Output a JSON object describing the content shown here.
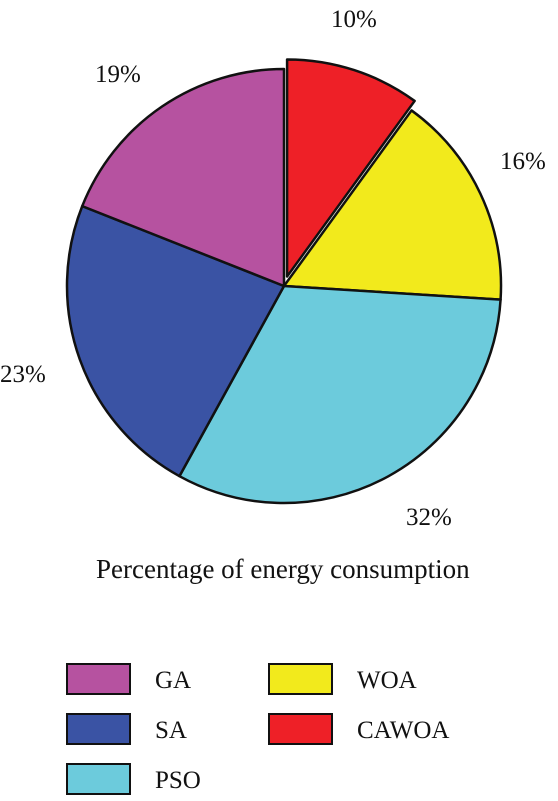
{
  "chart_data": {
    "type": "pie",
    "caption": "Percentage of energy consumption",
    "slices": [
      {
        "name": "CAWOA",
        "value": 10,
        "label": "10%",
        "color": "#ee2027",
        "exploded": true
      },
      {
        "name": "WOA",
        "value": 16,
        "label": "16%",
        "color": "#f2ea1c",
        "exploded": false
      },
      {
        "name": "PSO",
        "value": 32,
        "label": "32%",
        "color": "#6ccbdc",
        "exploded": false
      },
      {
        "name": "SA",
        "value": 23,
        "label": "23%",
        "color": "#3a53a4",
        "exploded": false
      },
      {
        "name": "GA",
        "value": 19,
        "label": "19%",
        "color": "#b652a0",
        "exploded": false
      }
    ],
    "legend": [
      "GA",
      "SA",
      "PSO",
      "WOA",
      "CAWOA"
    ],
    "legend_placement": "bottom"
  }
}
